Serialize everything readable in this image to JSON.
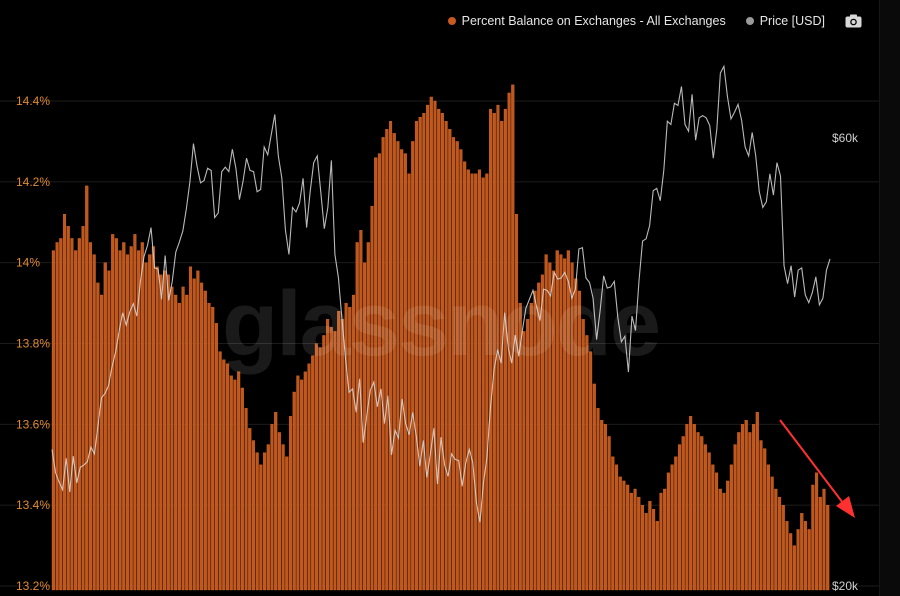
{
  "watermark": "glassnode",
  "legend": {
    "items": [
      {
        "label": "Percent Balance on Exchanges - All Exchanges",
        "color": "#c85a1e"
      },
      {
        "label": "Price [USD]",
        "color": "#9a9a9a"
      }
    ],
    "camera_icon": "camera-icon"
  },
  "colors": {
    "bar": "#c2571d",
    "bar_edge": "#e8732c",
    "price_line": "#d9d9d9",
    "left_axis": "#e08a2e",
    "right_axis": "#cfcfcf",
    "annotation_arrow": "#ff3030"
  },
  "chart_data": {
    "type": "bar",
    "title": "",
    "left_axis": {
      "ticks": [
        "14.4%",
        "14.2%",
        "14%",
        "13.8%",
        "13.6%",
        "13.4%",
        "13.2%"
      ],
      "tick_values": [
        14.4,
        14.2,
        14.0,
        13.8,
        13.6,
        13.4,
        13.2
      ],
      "ylim": [
        13.2,
        14.45
      ]
    },
    "right_axis": {
      "ticks": [
        "$60k",
        "$20k"
      ],
      "scale": "linear"
    },
    "series": [
      {
        "name": "Percent Balance on Exchanges - All Exchanges",
        "type": "bar",
        "axis": "left",
        "values": [
          14.03,
          14.05,
          14.06,
          14.12,
          14.09,
          14.06,
          14.03,
          14.06,
          14.09,
          14.19,
          14.05,
          14.02,
          13.95,
          13.92,
          14.0,
          13.98,
          14.07,
          14.06,
          14.03,
          14.05,
          14.02,
          14.04,
          14.07,
          14.03,
          14.05,
          14.0,
          14.02,
          14.04,
          13.99,
          13.97,
          13.98,
          13.97,
          13.94,
          13.92,
          13.9,
          13.94,
          13.92,
          13.99,
          13.96,
          13.98,
          13.95,
          13.93,
          13.9,
          13.89,
          13.85,
          13.78,
          13.76,
          13.75,
          13.72,
          13.71,
          13.73,
          13.69,
          13.64,
          13.59,
          13.56,
          13.53,
          13.5,
          13.53,
          13.55,
          13.6,
          13.63,
          13.58,
          13.55,
          13.52,
          13.62,
          13.68,
          13.72,
          13.71,
          13.73,
          13.75,
          13.77,
          13.8,
          13.79,
          13.82,
          13.86,
          13.84,
          13.83,
          13.88,
          13.86,
          13.9,
          13.89,
          13.92,
          14.05,
          14.08,
          14.0,
          14.05,
          14.14,
          14.26,
          14.27,
          14.31,
          14.33,
          14.35,
          14.32,
          14.3,
          14.28,
          14.27,
          14.22,
          14.3,
          14.35,
          14.36,
          14.37,
          14.39,
          14.41,
          14.4,
          14.38,
          14.37,
          14.35,
          14.33,
          14.31,
          14.3,
          14.28,
          14.25,
          14.23,
          14.22,
          14.22,
          14.23,
          14.21,
          14.22,
          14.38,
          14.37,
          14.39,
          14.35,
          14.38,
          14.42,
          14.44,
          14.12,
          13.9,
          13.83,
          13.86,
          13.9,
          13.93,
          13.95,
          13.97,
          14.02,
          14.0,
          13.98,
          14.03,
          14.02,
          14.01,
          14.03,
          14.0,
          13.96,
          13.93,
          13.86,
          13.82,
          13.78,
          13.7,
          13.64,
          13.61,
          13.6,
          13.57,
          13.52,
          13.5,
          13.47,
          13.46,
          13.45,
          13.43,
          13.44,
          13.42,
          13.4,
          13.38,
          13.41,
          13.39,
          13.36,
          13.43,
          13.44,
          13.48,
          13.5,
          13.52,
          13.55,
          13.57,
          13.6,
          13.62,
          13.6,
          13.58,
          13.57,
          13.55,
          13.53,
          13.5,
          13.48,
          13.44,
          13.43,
          13.46,
          13.5,
          13.55,
          13.58,
          13.6,
          13.61,
          13.58,
          13.6,
          13.63,
          13.56,
          13.54,
          13.5,
          13.47,
          13.44,
          13.42,
          13.4,
          13.36,
          13.33,
          13.3,
          13.34,
          13.38,
          13.36,
          13.34,
          13.45,
          13.48,
          13.42,
          13.44,
          13.4
        ]
      },
      {
        "name": "Price [USD]",
        "type": "line",
        "axis": "right",
        "values": [
          32.2,
          30.1,
          29.3,
          28.6,
          31.4,
          28.4,
          31.6,
          29.2,
          30.6,
          30.8,
          31.1,
          32.4,
          31.8,
          34.3,
          36.8,
          37.2,
          37.9,
          39.6,
          40.9,
          42.8,
          44.4,
          43.3,
          44.5,
          45.2,
          44.1,
          47.2,
          49.4,
          50.4,
          52.0,
          48.4,
          48.3,
          45.6,
          49.5,
          45.5,
          47.2,
          49.8,
          50.7,
          51.7,
          53.7,
          56.1,
          59.5,
          57.5,
          56.0,
          56.2,
          57.3,
          57.1,
          52.9,
          53.3,
          57.0,
          57.4,
          57.0,
          59.0,
          57.3,
          54.5,
          56.1,
          58.2,
          57.1,
          57.0,
          55.2,
          55.4,
          59.2,
          58.5,
          60.3,
          62.1,
          58.4,
          56.4,
          51.8,
          49.6,
          53.8,
          53.4,
          54.2,
          56.4,
          52.0,
          55.2,
          57.8,
          58.4,
          55.2,
          51.9,
          53.8,
          58.0,
          49.6,
          47.5,
          43.8,
          40.3,
          37.3,
          37.6,
          35.5,
          38.5,
          32.8,
          35.2,
          37.5,
          38.2,
          36.0,
          37.6,
          34.5,
          37.0,
          31.7,
          33.9,
          33.2,
          36.7,
          34.5,
          33.5,
          35.5,
          33.4,
          30.7,
          33.0,
          29.7,
          31.8,
          34.1,
          29.1,
          33.3,
          30.8,
          29.8,
          31.8,
          31.3,
          31.2,
          28.9,
          31.0,
          32.2,
          31.0,
          27.5,
          25.7,
          29.2,
          31.5,
          36.0,
          39.3,
          41.1,
          39.9,
          44.4,
          41.3,
          39.9,
          42.4,
          40.5,
          42.8,
          44.8,
          45.6,
          46.4,
          45.0,
          43.7,
          46.5,
          46.4,
          45.9,
          48.0,
          47.4,
          47.5,
          48.0,
          47.2,
          45.7,
          46.5,
          50.1,
          50.2,
          47.5,
          47.1,
          45.7,
          42.0,
          44.6,
          47.7,
          46.6,
          46.7,
          47.2,
          44.0,
          41.8,
          42.3,
          39.1,
          44.1,
          42.8,
          47.3,
          50.8,
          51.0,
          52.2,
          55.3,
          55.5,
          54.4,
          57.1,
          61.5,
          61.2,
          63.1,
          62.9,
          64.6,
          61.2,
          60.6,
          63.9,
          59.8,
          61.8,
          62.0,
          61.8,
          61.1,
          58.2,
          60.8,
          65.8,
          66.4,
          63.7,
          61.7,
          62.3,
          63.0,
          61.6,
          59.2,
          58.4,
          60.5,
          58.4,
          55.2,
          53.8,
          54.3,
          56.8,
          54.9,
          57.8,
          56.6,
          48.6,
          47.0,
          48.6,
          45.8,
          48.2,
          48.4,
          46.0,
          45.3,
          46.2,
          47.6,
          45.1,
          45.7,
          48.2,
          49.2
        ]
      }
    ],
    "annotations": [
      {
        "type": "arrow",
        "description": "downtrend"
      }
    ]
  }
}
